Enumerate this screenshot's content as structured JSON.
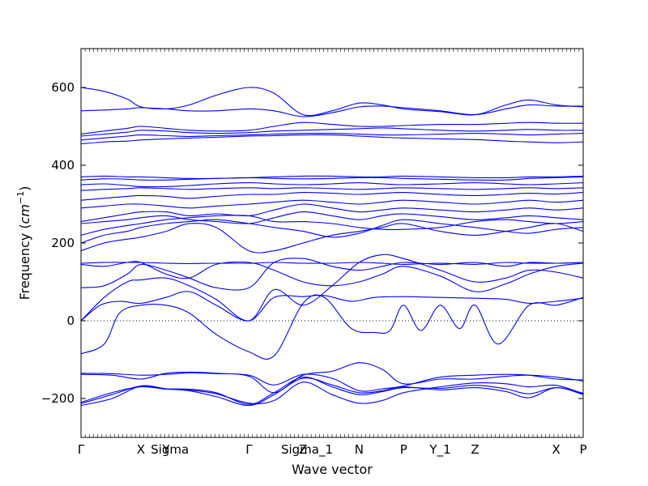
{
  "chart_data": {
    "type": "line",
    "title": "",
    "xlabel": "Wave vector",
    "ylabel": "Frequency",
    "ylabel_unit": "cm",
    "ylabel_unit_exp": "−1",
    "ylim": [
      -300,
      700
    ],
    "yticks": [
      -200,
      0,
      200,
      400,
      600
    ],
    "xlim": [
      0,
      13
    ],
    "high_symmetry_points": [
      {
        "label": "Γ",
        "x": 0
      },
      {
        "label": "X",
        "x": 1.55
      },
      {
        "label": "Y",
        "x": 2.2
      },
      {
        "label": "Sigma",
        "x": 2.3
      },
      {
        "label": "Γ",
        "x": 4.35
      },
      {
        "label": "Z",
        "x": 5.75
      },
      {
        "label": "Sigma_1",
        "x": 5.85
      },
      {
        "label": "N",
        "x": 7.2
      },
      {
        "label": "P",
        "x": 8.35
      },
      {
        "label": "Y_1",
        "x": 9.3
      },
      {
        "label": "Z",
        "x": 10.2
      },
      {
        "label": "X",
        "x": 12.3
      },
      {
        "label": "P",
        "x": 13
      }
    ],
    "zero_line": true,
    "line_color": "#0000ff",
    "bands": [
      {
        "x": [
          0,
          0.8,
          1.55,
          2.2,
          2.8,
          3.5,
          4.35,
          5.0,
          5.75,
          6.5,
          7.2,
          7.8,
          8.35,
          9.3,
          10.2,
          11.0,
          11.6,
          12.3,
          13
        ],
        "y": [
          -218,
          -200,
          -168,
          -175,
          -180,
          -195,
          -218,
          -190,
          -148,
          -165,
          -185,
          -180,
          -170,
          -178,
          -172,
          -182,
          -198,
          -172,
          -190
        ]
      },
      {
        "x": [
          0,
          0.8,
          1.55,
          2.2,
          2.8,
          3.5,
          4.35,
          5.0,
          5.75,
          6.5,
          7.2,
          7.8,
          8.35,
          9.3,
          10.2,
          11.0,
          11.6,
          12.3,
          13
        ],
        "y": [
          -213,
          -190,
          -168,
          -175,
          -176,
          -185,
          -215,
          -185,
          -145,
          -170,
          -190,
          -182,
          -172,
          -174,
          -166,
          -175,
          -188,
          -172,
          -186
        ]
      },
      {
        "x": [
          0,
          0.8,
          1.55,
          2.2,
          2.8,
          3.5,
          4.35,
          5.0,
          5.75,
          6.5,
          7.2,
          7.8,
          8.35,
          9.3,
          10.2,
          11.0,
          11.6,
          12.3,
          13
        ],
        "y": [
          -210,
          -185,
          -170,
          -176,
          -178,
          -188,
          -212,
          -205,
          -158,
          -190,
          -212,
          -205,
          -185,
          -170,
          -160,
          -162,
          -170,
          -166,
          -188
        ]
      },
      {
        "x": [
          0,
          0.8,
          1.55,
          2.2,
          2.8,
          3.5,
          4.35,
          5.0,
          5.75,
          6.5,
          7.2,
          7.8,
          8.35,
          9.3,
          10.2,
          11.0,
          11.6,
          12.3,
          13
        ],
        "y": [
          -138,
          -140,
          -150,
          -135,
          -132,
          -135,
          -143,
          -185,
          -140,
          -130,
          -108,
          -125,
          -162,
          -150,
          -150,
          -143,
          -140,
          -145,
          -155
        ]
      },
      {
        "x": [
          0,
          0.8,
          1.55,
          2.2,
          2.8,
          3.5,
          4.35,
          5.0,
          5.75,
          6.5,
          7.2,
          7.8,
          8.35,
          9.3,
          10.2,
          11.0,
          11.6,
          12.3,
          13
        ],
        "y": [
          -135,
          -136,
          -140,
          -138,
          -134,
          -136,
          -140,
          -165,
          -138,
          -148,
          -180,
          -175,
          -168,
          -145,
          -140,
          -138,
          -140,
          -150,
          -152
        ]
      },
      {
        "x": [
          0,
          0.6,
          1.0,
          1.55,
          2.2,
          2.8,
          3.5,
          4.35,
          5.0,
          5.75,
          6.3,
          7.0,
          7.6,
          8.0,
          8.35,
          8.8,
          9.3,
          9.8,
          10.2,
          10.8,
          11.6,
          12.3,
          13
        ],
        "y": [
          -85,
          -60,
          20,
          40,
          40,
          20,
          -35,
          -80,
          -90,
          45,
          60,
          -20,
          -30,
          -25,
          40,
          -25,
          40,
          -20,
          40,
          -60,
          40,
          40,
          60
        ]
      },
      {
        "x": [
          0,
          0.5,
          1.0,
          1.55,
          2.2,
          2.8,
          3.5,
          4.35,
          5.0,
          5.75,
          6.3,
          7.0,
          7.6,
          8.35,
          9.3,
          10.2,
          11.0,
          11.6,
          12.3,
          13
        ],
        "y": [
          0,
          40,
          50,
          45,
          60,
          75,
          40,
          0,
          60,
          62,
          65,
          50,
          60,
          62,
          60,
          58,
          55,
          45,
          50,
          58
        ]
      },
      {
        "x": [
          0,
          0.6,
          1.2,
          1.55,
          2.2,
          2.8,
          3.5,
          4.35,
          5.0,
          5.75,
          6.5,
          7.2,
          7.8,
          8.35,
          9.3,
          10.2,
          11.0,
          11.6,
          12.3,
          13
        ],
        "y": [
          0,
          60,
          100,
          105,
          110,
          90,
          55,
          0,
          80,
          40,
          90,
          150,
          170,
          160,
          130,
          100,
          110,
          130,
          125,
          110
        ]
      },
      {
        "x": [
          0,
          0.6,
          1.2,
          1.55,
          2.2,
          2.8,
          3.5,
          4.35,
          5.0,
          5.75,
          6.5,
          7.2,
          7.8,
          8.35,
          9.3,
          10.2,
          11.0,
          11.6,
          12.3,
          13
        ],
        "y": [
          85,
          90,
          120,
          145,
          130,
          110,
          85,
          85,
          150,
          160,
          140,
          130,
          140,
          150,
          145,
          150,
          140,
          150,
          148,
          150
        ]
      },
      {
        "x": [
          0,
          0.6,
          1.2,
          1.55,
          2.2,
          2.8,
          3.5,
          4.35,
          5.0,
          5.75,
          6.5,
          7.2,
          7.8,
          8.35,
          9.3,
          10.2,
          11.0,
          11.6,
          12.3,
          13
        ],
        "y": [
          148,
          150,
          150,
          150,
          148,
          147,
          148,
          148,
          150,
          148,
          148,
          150,
          148,
          145,
          148,
          145,
          150,
          148,
          148,
          150
        ]
      },
      {
        "x": [
          0,
          0.6,
          1.2,
          1.55,
          2.2,
          2.8,
          3.5,
          4.35,
          5.0,
          5.75,
          6.5,
          7.2,
          7.8,
          8.35,
          9.3,
          10.2,
          11.0,
          11.6,
          12.3,
          13
        ],
        "y": [
          145,
          140,
          150,
          150,
          120,
          110,
          145,
          150,
          130,
          100,
          90,
          100,
          120,
          140,
          115,
          75,
          95,
          120,
          140,
          148
        ]
      },
      {
        "x": [
          0,
          0.6,
          1.2,
          1.55,
          2.2,
          2.8,
          3.5,
          4.35,
          5.0,
          5.75,
          6.5,
          7.2,
          7.8,
          8.35,
          9.3,
          10.2,
          11.0,
          11.6,
          12.3,
          13
        ],
        "y": [
          180,
          200,
          210,
          215,
          230,
          250,
          240,
          180,
          180,
          200,
          220,
          230,
          240,
          250,
          230,
          220,
          230,
          240,
          250,
          230
        ]
      },
      {
        "x": [
          0,
          0.6,
          1.2,
          1.55,
          2.2,
          2.8,
          3.5,
          4.35,
          5.0,
          5.75,
          6.5,
          7.2,
          7.8,
          8.35,
          9.3,
          10.2,
          11.0,
          11.6,
          12.3,
          13
        ],
        "y": [
          200,
          220,
          230,
          240,
          250,
          255,
          260,
          250,
          240,
          230,
          215,
          225,
          245,
          260,
          250,
          240,
          230,
          225,
          235,
          240
        ]
      },
      {
        "x": [
          0,
          0.6,
          1.2,
          1.55,
          2.2,
          2.8,
          3.5,
          4.35,
          5.0,
          5.75,
          6.5,
          7.2,
          7.8,
          8.35,
          9.3,
          10.2,
          11.0,
          11.6,
          12.3,
          13
        ],
        "y": [
          220,
          235,
          245,
          250,
          260,
          265,
          270,
          270,
          255,
          255,
          250,
          240,
          235,
          235,
          240,
          255,
          260,
          255,
          250,
          255
        ]
      },
      {
        "x": [
          0,
          0.6,
          1.2,
          1.55,
          2.2,
          2.8,
          3.5,
          4.35,
          5.0,
          5.75,
          6.5,
          7.2,
          7.8,
          8.35,
          9.3,
          10.2,
          11.0,
          11.6,
          12.3,
          13
        ],
        "y": [
          250,
          255,
          260,
          265,
          270,
          260,
          255,
          250,
          265,
          280,
          270,
          260,
          270,
          275,
          268,
          260,
          265,
          270,
          265,
          260
        ]
      },
      {
        "x": [
          0,
          0.6,
          1.2,
          1.55,
          2.2,
          2.8,
          3.5,
          4.35,
          5.0,
          5.75,
          6.5,
          7.2,
          7.8,
          8.35,
          9.3,
          10.2,
          11.0,
          11.6,
          12.3,
          13
        ],
        "y": [
          255,
          265,
          275,
          280,
          280,
          270,
          275,
          270,
          285,
          300,
          290,
          280,
          285,
          290,
          285,
          280,
          285,
          290,
          285,
          290
        ]
      },
      {
        "x": [
          0,
          0.6,
          1.2,
          1.55,
          2.2,
          2.8,
          3.5,
          4.35,
          5.0,
          5.75,
          6.5,
          7.2,
          7.8,
          8.35,
          9.3,
          10.2,
          11.0,
          11.6,
          12.3,
          13
        ],
        "y": [
          290,
          295,
          300,
          300,
          295,
          290,
          295,
          300,
          305,
          310,
          305,
          300,
          305,
          310,
          305,
          300,
          305,
          310,
          305,
          310
        ]
      },
      {
        "x": [
          0,
          0.6,
          1.2,
          1.55,
          2.2,
          2.8,
          3.5,
          4.35,
          5.0,
          5.75,
          6.5,
          7.2,
          7.8,
          8.35,
          9.3,
          10.2,
          11.0,
          11.6,
          12.3,
          13
        ],
        "y": [
          310,
          315,
          320,
          322,
          320,
          315,
          320,
          325,
          325,
          330,
          328,
          325,
          328,
          330,
          325,
          322,
          325,
          328,
          326,
          330
        ]
      },
      {
        "x": [
          0,
          0.6,
          1.2,
          1.55,
          2.2,
          2.8,
          3.5,
          4.35,
          5.0,
          5.75,
          6.5,
          7.2,
          7.8,
          8.35,
          9.3,
          10.2,
          11.0,
          11.6,
          12.3,
          13
        ],
        "y": [
          335,
          338,
          340,
          342,
          340,
          338,
          340,
          342,
          340,
          342,
          340,
          338,
          340,
          342,
          340,
          338,
          340,
          342,
          340,
          342
        ]
      },
      {
        "x": [
          0,
          0.6,
          1.2,
          1.55,
          2.2,
          2.8,
          3.5,
          4.35,
          5.0,
          5.75,
          6.5,
          7.2,
          7.8,
          8.35,
          9.3,
          10.2,
          11.0,
          11.6,
          12.3,
          13
        ],
        "y": [
          350,
          352,
          348,
          345,
          345,
          348,
          352,
          355,
          352,
          350,
          352,
          355,
          352,
          350,
          352,
          355,
          352,
          350,
          352,
          355
        ]
      },
      {
        "x": [
          0,
          0.6,
          1.2,
          1.55,
          2.2,
          2.8,
          3.5,
          4.35,
          5.0,
          5.75,
          6.5,
          7.2,
          7.8,
          8.35,
          9.3,
          10.2,
          11.0,
          11.6,
          12.3,
          13
        ],
        "y": [
          362,
          365,
          364,
          362,
          362,
          364,
          366,
          368,
          366,
          365,
          366,
          368,
          368,
          366,
          364,
          362,
          362,
          366,
          368,
          370
        ]
      },
      {
        "x": [
          0,
          0.6,
          1.2,
          1.55,
          2.2,
          2.8,
          3.5,
          4.35,
          5.0,
          5.75,
          6.5,
          7.2,
          7.8,
          8.35,
          9.3,
          10.2,
          11.0,
          11.6,
          12.3,
          13
        ],
        "y": [
          370,
          372,
          370,
          370,
          368,
          366,
          366,
          368,
          370,
          372,
          372,
          370,
          370,
          372,
          370,
          368,
          368,
          370,
          370,
          372
        ]
      },
      {
        "x": [
          0,
          0.6,
          1.2,
          1.55,
          2.2,
          2.8,
          3.5,
          4.35,
          5.0,
          5.75,
          6.5,
          7.2,
          7.8,
          8.35,
          9.3,
          10.2,
          11.0,
          11.6,
          12.3,
          13
        ],
        "y": [
          455,
          460,
          462,
          465,
          468,
          470,
          472,
          475,
          476,
          478,
          478,
          475,
          472,
          470,
          468,
          466,
          462,
          460,
          458,
          460
        ]
      },
      {
        "x": [
          0,
          0.6,
          1.2,
          1.55,
          2.2,
          2.8,
          3.5,
          4.35,
          5.0,
          5.75,
          6.5,
          7.2,
          7.8,
          8.35,
          9.3,
          10.2,
          11.0,
          11.6,
          12.3,
          13
        ],
        "y": [
          465,
          470,
          475,
          478,
          476,
          474,
          476,
          478,
          480,
          482,
          482,
          480,
          478,
          478,
          480,
          482,
          480,
          478,
          480,
          482
        ]
      },
      {
        "x": [
          0,
          0.6,
          1.2,
          1.55,
          2.2,
          2.8,
          3.5,
          4.35,
          5.0,
          5.75,
          6.5,
          7.2,
          7.8,
          8.35,
          9.3,
          10.2,
          11.0,
          11.6,
          12.3,
          13
        ],
        "y": [
          475,
          480,
          485,
          490,
          488,
          484,
          482,
          484,
          488,
          490,
          492,
          494,
          496,
          494,
          490,
          488,
          490,
          492,
          490,
          490
        ]
      },
      {
        "x": [
          0,
          0.6,
          1.2,
          1.55,
          2.2,
          2.8,
          3.5,
          4.35,
          5.0,
          5.75,
          6.5,
          7.2,
          7.8,
          8.35,
          9.3,
          10.2,
          11.0,
          11.6,
          12.3,
          13
        ],
        "y": [
          480,
          488,
          495,
          500,
          495,
          490,
          488,
          490,
          500,
          510,
          505,
          500,
          500,
          502,
          505,
          505,
          508,
          510,
          508,
          508
        ]
      },
      {
        "x": [
          0,
          0.6,
          1.2,
          1.55,
          2.2,
          2.8,
          3.5,
          4.35,
          5.0,
          5.75,
          6.5,
          7.2,
          7.8,
          8.35,
          9.3,
          10.2,
          11.0,
          11.6,
          12.3,
          13
        ],
        "y": [
          540,
          542,
          545,
          548,
          545,
          540,
          540,
          545,
          540,
          525,
          535,
          550,
          552,
          548,
          540,
          530,
          545,
          555,
          552,
          552
        ]
      },
      {
        "x": [
          0,
          0.6,
          1.2,
          1.55,
          2.2,
          2.8,
          3.5,
          4.35,
          5.0,
          5.75,
          6.5,
          7.2,
          7.8,
          8.35,
          9.3,
          10.2,
          11.0,
          11.6,
          12.3,
          13
        ],
        "y": [
          600,
          590,
          570,
          550,
          545,
          555,
          580,
          600,
          585,
          530,
          540,
          560,
          555,
          545,
          538,
          530,
          555,
          568,
          555,
          550
        ]
      }
    ]
  }
}
